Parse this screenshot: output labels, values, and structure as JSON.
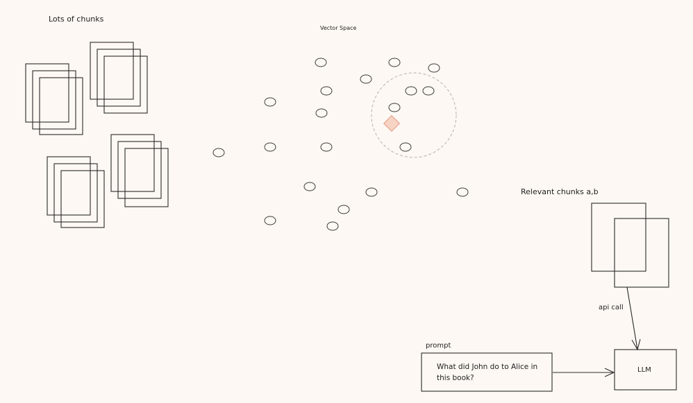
{
  "labels": {
    "chunks_title": "Lots of chunks",
    "vector_space_title": "Vector Space",
    "relevant_title": "Relevant chunks a,b",
    "api_call": "api call",
    "prompt_caption": "prompt",
    "prompt_text": "What did John do to Alice in this book?",
    "llm": "LLM"
  },
  "colors": {
    "ink": "#2a2a2a",
    "dashed_circle": "#b0b0b0",
    "query_fill": "#f7d3c3",
    "query_stroke": "#e39a86",
    "background": "#fdf8f3"
  }
}
